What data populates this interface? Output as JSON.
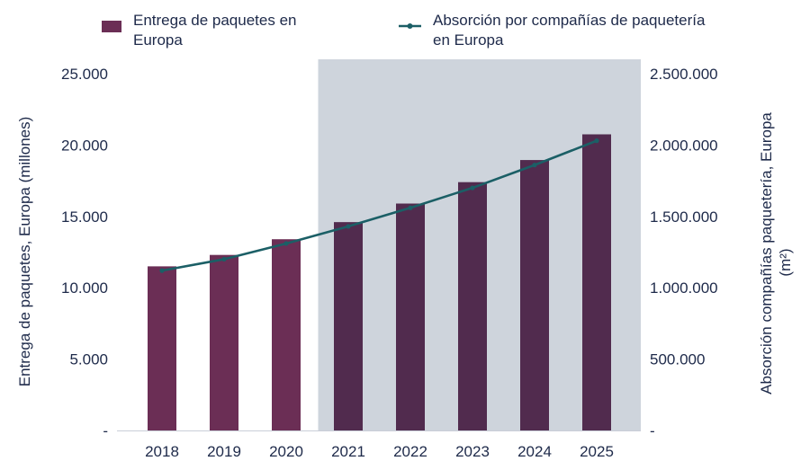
{
  "chart_data": {
    "type": "bar",
    "categories": [
      "2018",
      "2019",
      "2020",
      "2021",
      "2022",
      "2023",
      "2024",
      "2025"
    ],
    "series": [
      {
        "name": "Entrega de paquetes en Europa",
        "kind": "bar",
        "axis": "left",
        "values": [
          11500,
          12300,
          13400,
          14600,
          15900,
          17400,
          18950,
          20750
        ]
      },
      {
        "name": "Absorción por compañías de paquetería en Europa",
        "kind": "line",
        "axis": "right",
        "values": [
          1120000,
          1200000,
          1310000,
          1430000,
          1560000,
          1700000,
          1860000,
          2030000
        ]
      }
    ],
    "legend": [
      {
        "lines": [
          "Entrega de paquetes en",
          "Europa"
        ]
      },
      {
        "lines": [
          "Absorción por compañías de paquetería",
          "en Europa"
        ]
      }
    ],
    "left_axis": {
      "label": "Entrega de paquetes, Europa (millones)",
      "ylim": [
        0,
        25000
      ],
      "ticks": [
        0,
        5000,
        10000,
        15000,
        20000,
        25000
      ],
      "tick_labels": [
        "-",
        "5.000",
        "10.000",
        "15.000",
        "20.000",
        "25.000"
      ]
    },
    "right_axis": {
      "label_lines": [
        "Absorción compañías paquetería, Europa",
        "(m²)"
      ],
      "ylim": [
        0,
        2500000
      ],
      "ticks": [
        0,
        500000,
        1000000,
        1500000,
        2000000,
        2500000
      ],
      "tick_labels": [
        "-",
        "500.000",
        "1.000.000",
        "1.500.000",
        "2.000.000",
        "2.500.000"
      ]
    },
    "forecast_highlight": {
      "from": "2021",
      "to": "2025"
    },
    "colors": {
      "bar_actual": "#6b2e55",
      "bar_forecast": "#512b4e",
      "line": "#1b5f66",
      "highlight": "#ced4dc",
      "text": "#1e2a4a",
      "baseline": "#c9ced8"
    }
  }
}
